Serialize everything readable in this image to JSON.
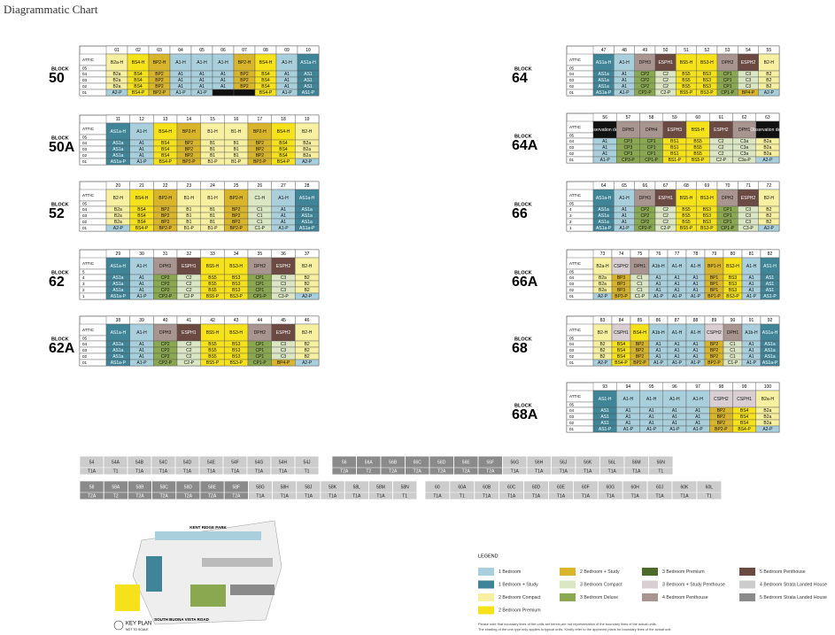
{
  "header": {
    "title": "Diagrammatic Chart",
    "block_label": "BLOCK"
  },
  "blocks": [
    {
      "name": "50",
      "units": [
        "01",
        "02",
        "03",
        "04",
        "05",
        "06",
        "07",
        "08",
        "09",
        "10"
      ],
      "floors": [
        "ATTIC",
        "05",
        "04",
        "03",
        "02",
        "01"
      ],
      "attic": [
        "B2a-H",
        "BS4-H",
        "BP2-H",
        "A1-H",
        "A1-H",
        "A1-H",
        "BP2-H",
        "BS4-H",
        "A1-H",
        "AS1a-H"
      ],
      "rows": [
        [
          "B2a",
          "BS4",
          "BP2",
          "A1",
          "A1",
          "A1",
          "BP2",
          "BS4",
          "A1",
          "AS1"
        ],
        [
          "B2a",
          "BS4",
          "BP2",
          "A1",
          "A1",
          "A1",
          "BP2",
          "BS4",
          "A1",
          "AS1"
        ],
        [
          "B2a",
          "BS4",
          "BP2",
          "A1",
          "A1",
          "A1",
          "BP2",
          "BS4",
          "A1",
          "AS1"
        ],
        [
          "A2-P",
          "BS4-P",
          "BP2-P",
          "A1-P",
          "A1-P",
          null,
          null,
          "BS4-P",
          "A1-P",
          "AS1-P"
        ]
      ]
    },
    {
      "name": "50A",
      "units": [
        "11",
        "12",
        "13",
        "14",
        "15",
        "16",
        "17",
        "18",
        "19"
      ],
      "floors": [
        "ATTIC",
        "05",
        "04",
        "03",
        "02",
        "01"
      ],
      "attic": [
        "AS1a-H",
        "A1-H",
        "BS4-H",
        "BP2-H",
        "B1-H",
        "B1-H",
        "BP2-H",
        "BS4-H",
        "B2-H"
      ],
      "rows": [
        [
          "AS1a",
          "A1",
          "BS4",
          "BP2",
          "B1",
          "B1",
          "BP2",
          "BS4",
          "B2a"
        ],
        [
          "AS1a",
          "A1",
          "BS4",
          "BP2",
          "B1",
          "B1",
          "BP2",
          "BS4",
          "B2a"
        ],
        [
          "AS1a",
          "A1",
          "BS4",
          "BP2",
          "B1",
          "B1",
          "BP2",
          "BS4",
          "B2a"
        ],
        [
          "AS1a-P",
          "A1-P",
          "BS4-P",
          "BP2-P",
          "B1-P",
          "B1-P",
          "BP2-P",
          "BS4-P",
          "A2-P"
        ]
      ]
    },
    {
      "name": "52",
      "units": [
        "20",
        "21",
        "22",
        "23",
        "24",
        "25",
        "26",
        "27",
        "28"
      ],
      "floors": [
        "ATTIC",
        "05",
        "04",
        "03",
        "02",
        "01"
      ],
      "attic": [
        "B2-H",
        "BS4-H",
        "BP2-H",
        "B1-H",
        "B1-H",
        "BP2-H",
        "C1-H",
        "A1-H",
        "AS1a-H"
      ],
      "rows": [
        [
          "B2a",
          "BS4",
          "BP2",
          "B1",
          "B1",
          "BP2",
          "C1",
          "A1",
          "AS1a"
        ],
        [
          "B2a",
          "BS4",
          "BP2",
          "B1",
          "B1",
          "BP2",
          "C1",
          "A1",
          "AS1a"
        ],
        [
          "B2a",
          "BS4",
          "BP2",
          "B1",
          "B1",
          "BP2",
          "C1",
          "A1",
          "AS1a"
        ],
        [
          "A2-P",
          "BS4-P",
          "BP2-P",
          "B1-P",
          "B1-P",
          "BP2-P",
          "C1-P",
          "A1-P",
          "AS1a-P"
        ]
      ]
    },
    {
      "name": "62",
      "units": [
        "29",
        "30",
        "31",
        "32",
        "33",
        "34",
        "35",
        "36",
        "37"
      ],
      "floors": [
        "ATTIC",
        "5",
        "4",
        "3",
        "2",
        "1"
      ],
      "attic": [
        "AS1a-H",
        "A1-H",
        "DPH3",
        "ESPH1",
        "BS5-H",
        "BS3-H",
        "DPH2",
        "ESPH2",
        "B2-H"
      ],
      "rows": [
        [
          "AS1a",
          "A1",
          "CP2",
          "C2",
          "BS5",
          "BS3",
          "CP1",
          "C3",
          "B2"
        ],
        [
          "AS1a",
          "A1",
          "CP2",
          "C2",
          "BS5",
          "BS3",
          "CP1",
          "C3",
          "B2"
        ],
        [
          "AS1a",
          "A1",
          "CP2",
          "C2",
          "BS5",
          "BS3",
          "CP1",
          "C3",
          "B2"
        ],
        [
          "AS1a-P",
          "A1-P",
          "CP2-P",
          "C2-P",
          "BS5-P",
          "BS3-P",
          "CP1-P",
          "C3-P",
          "A2-P"
        ]
      ]
    },
    {
      "name": "62A",
      "units": [
        "38",
        "39",
        "40",
        "41",
        "42",
        "43",
        "44",
        "45",
        "46"
      ],
      "floors": [
        "ATTIC",
        "05",
        "04",
        "03",
        "02",
        "01"
      ],
      "attic": [
        "AS1a-H",
        "A1-H",
        "DPH3",
        "ESPH1",
        "BS5-H",
        "BS3-H",
        "DPH2",
        "ESPH2",
        "B2-H"
      ],
      "rows": [
        [
          "AS1a",
          "A1",
          "CP2",
          "C2",
          "BS5",
          "BS3",
          "CP1",
          "C3",
          "B2"
        ],
        [
          "AS1a",
          "A1",
          "CP2",
          "C2",
          "BS5",
          "BS3",
          "CP1",
          "C3",
          "B2"
        ],
        [
          "AS1a",
          "A1",
          "CP2",
          "C2",
          "BS5",
          "BS3",
          "CP1",
          "C3",
          "B2"
        ],
        [
          "AS1a-P",
          "A1-P",
          "CP2-P",
          "C2-P",
          "BS5-P",
          "BS3-P",
          "CP1-P",
          "BP4-P",
          "A2-P"
        ]
      ]
    },
    {
      "name": "64",
      "units": [
        "47",
        "48",
        "49",
        "50",
        "51",
        "52",
        "53",
        "54",
        "55"
      ],
      "floors": [
        "ATTIC",
        "05",
        "04",
        "03",
        "02",
        "01"
      ],
      "attic": [
        "AS1a-H",
        "A1-H",
        "DPH3",
        "ESPH1",
        "BS5-H",
        "BS3-H",
        "DPH2",
        "ESPH2",
        "B2-H"
      ],
      "rows": [
        [
          "AS1a",
          "A1",
          "CP2",
          "C2",
          "BS5",
          "BS3",
          "CP1",
          "C3",
          "B2"
        ],
        [
          "AS1a",
          "A1",
          "CP2",
          "C2",
          "BS5",
          "BS3",
          "CP1",
          "C3",
          "B2"
        ],
        [
          "AS1a",
          "A1",
          "CP2",
          "C2",
          "BS5",
          "BS3",
          "CP1",
          "C3",
          "B2"
        ],
        [
          "AS1a-P",
          "A1-P",
          "CP2-P",
          "C2-P",
          "BS5-P",
          "BS3-P",
          "CP1-P",
          "BP4-P",
          "A2-P"
        ]
      ]
    },
    {
      "name": "64A",
      "units": [
        "56",
        "57",
        "58",
        "59",
        "60",
        "61",
        "62",
        "63"
      ],
      "floors": [
        "ATTIC",
        "05",
        "04",
        "03",
        "02",
        "01"
      ],
      "attic": [
        "Observation deck",
        "DPH3",
        "DPH4",
        "ESPH3",
        "BS5-H",
        "ESPH2",
        "DPH1",
        "Observation deck"
      ],
      "rows": [
        [
          "A1",
          "CP3",
          "CP1",
          "BS1",
          "BS5",
          "C2",
          "C3a",
          "B2a"
        ],
        [
          "A1",
          "CP3",
          "CP1",
          "BS1",
          "BS5",
          "C2",
          "C3a",
          "B2a"
        ],
        [
          "A1",
          "CP3",
          "CP1",
          "BS1",
          "BS5",
          "C2",
          "C3a",
          "B2a"
        ],
        [
          "A1-P",
          "CP3-P",
          "CP1-P",
          "BS1-P",
          "BS5-P",
          "C2-P",
          "C3a-P",
          "A2-P"
        ]
      ]
    },
    {
      "name": "66",
      "units": [
        "64",
        "65",
        "66",
        "67",
        "68",
        "69",
        "70",
        "71",
        "72"
      ],
      "floors": [
        "ATTIC",
        "05",
        "4",
        "3",
        "2",
        "1"
      ],
      "attic": [
        "AS1a-H",
        "A1-H",
        "DPH3",
        "ESPH1",
        "BS5-H",
        "BS3-H",
        "DPH2",
        "ESPH2",
        "B2-H"
      ],
      "rows": [
        [
          "AS1a",
          "A1",
          "CP2",
          "C2",
          "BS5",
          "BS3",
          "CP1",
          "C3",
          "B2"
        ],
        [
          "AS1a",
          "A1",
          "CP2",
          "C2",
          "BS5",
          "BS3",
          "CP1",
          "C3",
          "B2"
        ],
        [
          "AS1a",
          "A1",
          "CP2",
          "C2",
          "BS5",
          "BS3",
          "CP1",
          "C3",
          "B2"
        ],
        [
          "AS1a-P",
          "A1-P",
          "CP2-P",
          "C2-P",
          "BS5-P",
          "BS3-P",
          "CP1-P",
          "C3-P",
          "A2-P"
        ]
      ]
    },
    {
      "name": "66A",
      "units": [
        "73",
        "74",
        "75",
        "76",
        "77",
        "78",
        "79",
        "80",
        "81",
        "82"
      ],
      "floors": [
        "ATTIC",
        "05",
        "04",
        "03",
        "02",
        "01"
      ],
      "attic": [
        "B2a-H",
        "CSPH2",
        "DPH1",
        "A1b-H",
        "A1-H",
        "A1-H",
        "BP1-H",
        "BS3-H",
        "A1-H",
        "AS1-H"
      ],
      "rows": [
        [
          "B2a",
          "BP3",
          "C1",
          "A1",
          "A1",
          "A1",
          "BP1",
          "BS3",
          "A1",
          "AS1"
        ],
        [
          "B2a",
          "BP3",
          "C1",
          "A1",
          "A1",
          "A1",
          "BP1",
          "BS3",
          "A1",
          "AS1"
        ],
        [
          "B2a",
          "BP3",
          "C1",
          "A1",
          "A1",
          "A1",
          "BP1",
          "BS3",
          "A1",
          "AS1"
        ],
        [
          "A2-P",
          "BP3-P",
          "C1-P",
          "A1-P",
          "A1-P",
          "A1-P",
          "BP1-P",
          "BS3-P",
          "A1-P",
          "AS1-P"
        ]
      ]
    },
    {
      "name": "68",
      "units": [
        "83",
        "84",
        "85",
        "86",
        "87",
        "88",
        "89",
        "90",
        "91",
        "92"
      ],
      "floors": [
        "ATTIC",
        "05",
        "04",
        "03",
        "02",
        "01"
      ],
      "attic": [
        "B2-H",
        "CSPH1",
        "BS4-H",
        "A1b-H",
        "A1-H",
        "A1-H",
        "CSPH2",
        "DPH1",
        "A1b-H",
        "AS1a-H"
      ],
      "rows": [
        [
          "B2",
          "BS4",
          "BP2",
          "A1",
          "A1",
          "A1",
          "BP2",
          "C1",
          "A1",
          "AS1a"
        ],
        [
          "B2",
          "BS4",
          "BP2",
          "A1",
          "A1",
          "A1",
          "BP2",
          "C1",
          "A1",
          "AS1a"
        ],
        [
          "B2",
          "BS4",
          "BP2",
          "A1",
          "A1",
          "A1",
          "BP2",
          "C1",
          "A1",
          "AS1a"
        ],
        [
          "A2-P",
          "BS4-P",
          "BP2-P",
          "A1-P",
          "A1-P",
          "A1-P",
          "BP2-P",
          "C1-P",
          "A1-P",
          "AS1a-P"
        ]
      ]
    },
    {
      "name": "68A",
      "units": [
        "93",
        "94",
        "95",
        "96",
        "97",
        "98",
        "99",
        "100"
      ],
      "floors": [
        "ATTIC",
        "05",
        "04",
        "03",
        "02",
        "01"
      ],
      "attic": [
        "AS1-H",
        "A1-H",
        "A1-H",
        "A1-H",
        "A1-H",
        "CSPH2",
        "CSPH1",
        "B2a-H"
      ],
      "rows": [
        [
          "AS1",
          "A1",
          "A1",
          "A1",
          "A1",
          "BP2",
          "BS4",
          "B2a"
        ],
        [
          "AS1",
          "A1",
          "A1",
          "A1",
          "A1",
          "BP2",
          "BS4",
          "B2a"
        ],
        [
          "AS1",
          "A1",
          "A1",
          "A1",
          "A1",
          "BP2",
          "BS4",
          "B2a"
        ],
        [
          "AS1-P",
          "A1-P",
          "A1-P",
          "A1-P",
          "A1-P",
          "BP2-P",
          "BS4-P",
          "A2-P"
        ]
      ]
    }
  ],
  "houses": [
    {
      "names": [
        "54",
        "54A",
        "54B",
        "54C",
        "54D",
        "54E",
        "54F",
        "54G",
        "54H",
        "54J"
      ],
      "types": [
        "T1A",
        "T1",
        "T1A",
        "T1A",
        "T1A",
        "T1A",
        "T1A",
        "T1A",
        "T1A",
        "T1"
      ]
    },
    {
      "names": [
        "56",
        "56A",
        "56B",
        "56C",
        "56D",
        "56E",
        "56F",
        "56G",
        "56H",
        "56J",
        "56K",
        "56L",
        "56M",
        "56N"
      ],
      "types": [
        "T2A",
        "T2",
        "T2A",
        "T2A",
        "T2A",
        "T2A",
        "T2A",
        "T1A",
        "T1A",
        "T1A",
        "T1A",
        "T1A",
        "T1A",
        "T1"
      ]
    },
    {
      "names": [
        "58",
        "58A",
        "58B",
        "58C",
        "58D",
        "58E",
        "58F",
        "58G",
        "58H",
        "58J",
        "58K",
        "58L",
        "58M",
        "58N"
      ],
      "types": [
        "T2A",
        "T2",
        "T2A",
        "T2A",
        "T2A",
        "T2A",
        "T2A",
        "T1A",
        "T1A",
        "T1A",
        "T1A",
        "T1A",
        "T1A",
        "T1"
      ]
    },
    {
      "names": [
        "60",
        "60A",
        "60B",
        "60C",
        "60D",
        "60E",
        "60F",
        "60G",
        "60H",
        "60J",
        "60K",
        "60L"
      ],
      "types": [
        "T1A",
        "T1",
        "T1A",
        "T1A",
        "T1A",
        "T1A",
        "T1A",
        "T1A",
        "T1A",
        "T1A",
        "T1A",
        "T1"
      ]
    }
  ],
  "legend": {
    "title": "LEGEND",
    "items": [
      {
        "label": "1 Bedroom",
        "color": "#a9cfdc"
      },
      {
        "label": "1 Bedroom + Study",
        "color": "#3f8497"
      },
      {
        "label": "2 Bedroom Compact",
        "color": "#f7f0a0"
      },
      {
        "label": "2 Bedroom Premium",
        "color": "#f6e21a"
      },
      {
        "label": "2 Bedroom + Study",
        "color": "#d8b52a"
      },
      {
        "label": "3 Bedroom Compact",
        "color": "#dbe6c4"
      },
      {
        "label": "3 Bedroom Deluxe",
        "color": "#8aa84f"
      },
      {
        "label": "3 Bedroom Premium",
        "color": "#4d6a2a"
      },
      {
        "label": "3 Bedroom + Study Penthouse",
        "color": "#d9cfd3"
      },
      {
        "label": "4 Bedroom Penthouse",
        "color": "#a9958f"
      },
      {
        "label": "5 Bedroom Penthouse",
        "color": "#6b4a44"
      },
      {
        "label": "4 Bedroom Strata Landed House",
        "color": "#cccccc"
      },
      {
        "label": "5 Bedroom Strata Landed House",
        "color": "#8a8a8a"
      }
    ],
    "notes": [
      "Please note that boundary lines of the units set herein are not representation of the boundary lines of the actual units.",
      "The shading of the unit type only applies to typical units. Kindly refer to the approved plans for boundary lines of the actual unit."
    ]
  },
  "keyplan": {
    "top_road": "KENT RIDGE PARK",
    "bottom_road": "SOUTH BUONA VISTA ROAD",
    "title": "KEY PLAN",
    "subtitle": "NOT TO SCALE"
  }
}
